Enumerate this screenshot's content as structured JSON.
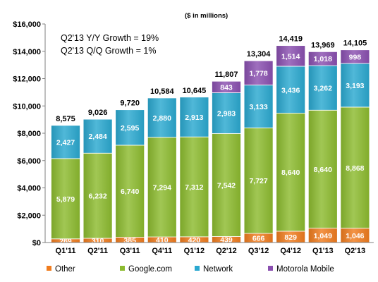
{
  "chart_data": {
    "type": "bar",
    "stacked": true,
    "units_note": "($ in millions)",
    "annotations": [
      "Q2'13 Y/Y Growth = 19%",
      "Q2'13 Q/Q Growth = 1%"
    ],
    "categories": [
      "Q1'11",
      "Q2'11",
      "Q3'11",
      "Q4'11",
      "Q1'12",
      "Q2'12",
      "Q3'12",
      "Q4'12",
      "Q1'13",
      "Q2'13"
    ],
    "ylim": [
      0,
      16000
    ],
    "yticks": [
      0,
      2000,
      4000,
      6000,
      8000,
      10000,
      12000,
      14000,
      16000
    ],
    "ytick_labels": [
      "$0",
      "$2,000",
      "$4,000",
      "$6,000",
      "$8,000",
      "$10,000",
      "$12,000",
      "$14,000",
      "$16,000"
    ],
    "totals": [
      "8,575",
      "9,026",
      "9,720",
      "10,584",
      "10,645",
      "11,807",
      "13,304",
      "14,419",
      "13,969",
      "14,105"
    ],
    "total_values": [
      8575,
      9026,
      9720,
      10584,
      10645,
      11807,
      13304,
      14419,
      13969,
      14105
    ],
    "series": [
      {
        "name": "Other",
        "color": "#f07c1e",
        "values": [
          269,
          310,
          385,
          410,
          420,
          439,
          666,
          829,
          1049,
          1046
        ],
        "labels": [
          "269",
          "310",
          "385",
          "410",
          "420",
          "439",
          "666",
          "829",
          "1,049",
          "1,046"
        ]
      },
      {
        "name": "Google.com",
        "color": "#8cbb2f",
        "values": [
          5879,
          6232,
          6740,
          7294,
          7312,
          7542,
          7727,
          8640,
          8640,
          8868
        ],
        "labels": [
          "5,879",
          "6,232",
          "6,740",
          "7,294",
          "7,312",
          "7,542",
          "7,727",
          "8,640",
          "8,640",
          "8,868"
        ]
      },
      {
        "name": "Network",
        "color": "#2aa8d0",
        "values": [
          2427,
          2484,
          2595,
          2880,
          2913,
          2983,
          3133,
          3436,
          3262,
          3193
        ],
        "labels": [
          "2,427",
          "2,484",
          "2,595",
          "2,880",
          "2,913",
          "2,983",
          "3,133",
          "3,436",
          "3,262",
          "3,193"
        ]
      },
      {
        "name": "Motorola Mobile",
        "color": "#8a4fb0",
        "values": [
          0,
          0,
          0,
          0,
          0,
          843,
          1778,
          1514,
          1018,
          998
        ],
        "labels": [
          "",
          "",
          "",
          "",
          "",
          "843",
          "1,778",
          "1,514",
          "1,018",
          "998"
        ]
      }
    ],
    "legend": "bottom",
    "grid": false
  }
}
